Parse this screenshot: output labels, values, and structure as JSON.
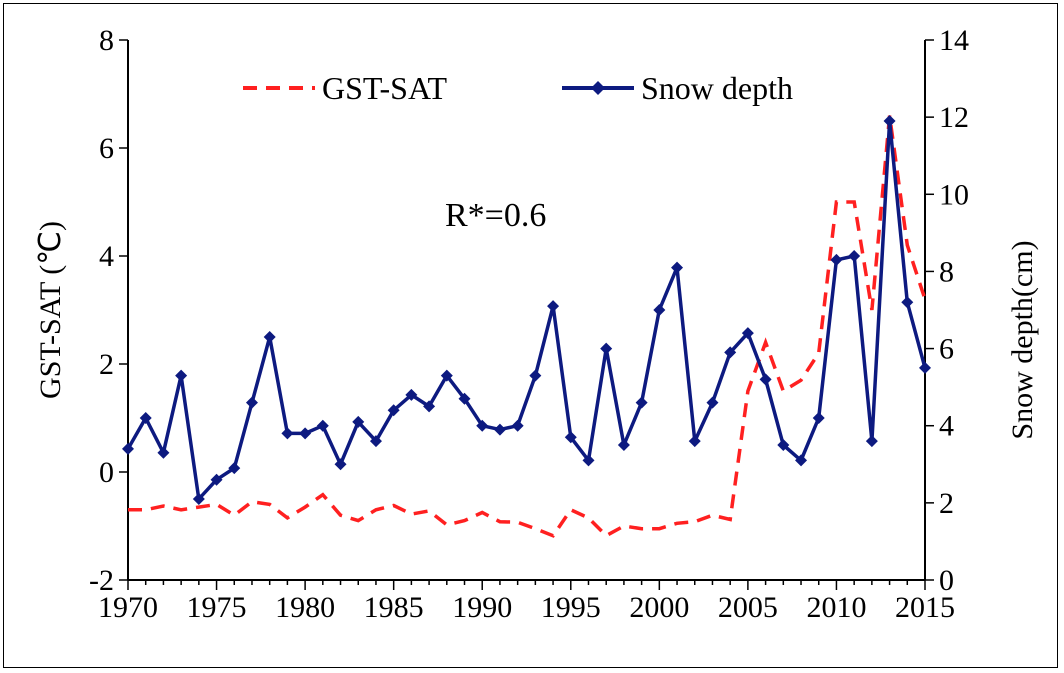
{
  "chart_data": {
    "type": "line",
    "x": [
      1970,
      1971,
      1972,
      1973,
      1974,
      1975,
      1976,
      1977,
      1978,
      1979,
      1980,
      1981,
      1982,
      1983,
      1984,
      1985,
      1986,
      1987,
      1988,
      1989,
      1990,
      1991,
      1992,
      1993,
      1994,
      1995,
      1996,
      1997,
      1998,
      1999,
      2000,
      2001,
      2002,
      2003,
      2004,
      2005,
      2006,
      2007,
      2008,
      2009,
      2010,
      2011,
      2012,
      2013,
      2014,
      2015
    ],
    "xticks": [
      "1970",
      "1975",
      "1980",
      "1985",
      "1990",
      "1995",
      "2000",
      "2005",
      "2010",
      "2015"
    ],
    "xlim": [
      1970,
      2015
    ],
    "ylabel": "GST-SAT (℃)",
    "ylim": [
      -2,
      8
    ],
    "yticks": [
      "-2",
      "0",
      "2",
      "4",
      "6",
      "8"
    ],
    "y2label": "Snow depth(cm)",
    "y2lim": [
      0,
      14
    ],
    "y2ticks": [
      "0",
      "2",
      "4",
      "6",
      "8",
      "10",
      "12",
      "14"
    ],
    "annotation": "R*=0.6",
    "legend_position": "top",
    "series": [
      {
        "name": "GST-SAT",
        "axis": "left",
        "style": "dashed",
        "color": "#ff2020",
        "values": [
          -0.7,
          -0.7,
          -0.63,
          -0.7,
          -0.65,
          -0.6,
          -0.8,
          -0.55,
          -0.6,
          -0.85,
          -0.65,
          -0.42,
          -0.8,
          -0.9,
          -0.7,
          -0.62,
          -0.78,
          -0.72,
          -0.98,
          -0.9,
          -0.75,
          -0.92,
          -0.93,
          -1.05,
          -1.18,
          -0.7,
          -0.85,
          -1.18,
          -1.0,
          -1.05,
          -1.05,
          -0.95,
          -0.92,
          -0.8,
          -0.88,
          1.5,
          2.4,
          1.5,
          1.7,
          2.2,
          5.0,
          5.0,
          3.0,
          6.6,
          4.2,
          3.2
        ]
      },
      {
        "name": "Snow depth",
        "axis": "right",
        "style": "solid-diamond",
        "color": "#0d1a80",
        "values": [
          3.4,
          4.2,
          3.3,
          5.3,
          2.1,
          2.6,
          2.9,
          4.6,
          6.3,
          3.8,
          3.8,
          4.0,
          3.0,
          4.1,
          3.6,
          4.4,
          4.8,
          4.5,
          5.3,
          4.7,
          4.0,
          3.9,
          4.0,
          5.3,
          7.1,
          3.7,
          3.1,
          6.0,
          3.5,
          4.6,
          7.0,
          8.1,
          3.6,
          4.6,
          5.9,
          6.4,
          5.2,
          3.5,
          3.1,
          4.2,
          8.3,
          8.4,
          3.6,
          11.9,
          7.2,
          5.5
        ]
      }
    ]
  }
}
